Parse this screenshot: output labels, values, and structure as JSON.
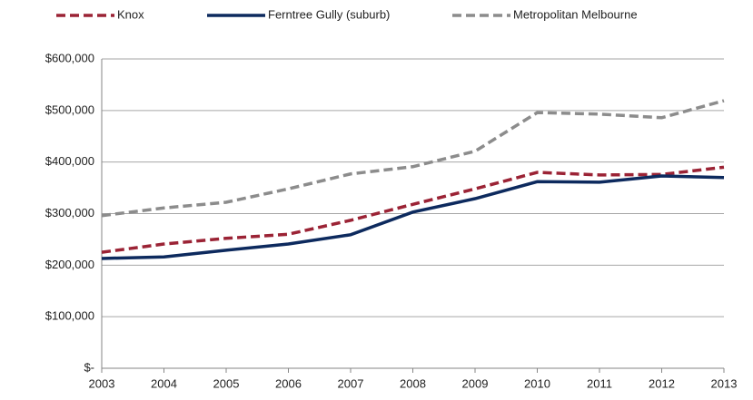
{
  "chart_data": {
    "type": "line",
    "categories": [
      "2003",
      "2004",
      "2005",
      "2006",
      "2007",
      "2008",
      "2009",
      "2010",
      "2011",
      "2012",
      "2013"
    ],
    "series": [
      {
        "name": "Knox",
        "color": "#9b2335",
        "dashed": true,
        "values": [
          225000,
          241000,
          252000,
          260000,
          287000,
          318000,
          348000,
          380000,
          375000,
          376000,
          390000
        ]
      },
      {
        "name": "Ferntree Gully (suburb)",
        "color": "#0d2a5e",
        "dashed": false,
        "values": [
          213000,
          216000,
          229000,
          241000,
          259000,
          303000,
          329000,
          362000,
          361000,
          373000,
          370000
        ]
      },
      {
        "name": "Metropolitan Melbourne",
        "color": "#8c8c8c",
        "dashed": true,
        "values": [
          296000,
          311000,
          322000,
          348000,
          377000,
          391000,
          421000,
          496000,
          493000,
          486000,
          519000
        ]
      }
    ],
    "ylim": [
      0,
      600000
    ],
    "yticks": [
      {
        "value": 0,
        "label": "$-"
      },
      {
        "value": 100000,
        "label": "$100,000"
      },
      {
        "value": 200000,
        "label": "$200,000"
      },
      {
        "value": 300000,
        "label": "$300,000"
      },
      {
        "value": 400000,
        "label": "$400,000"
      },
      {
        "value": 500000,
        "label": "$500,000"
      },
      {
        "value": 600000,
        "label": "$600,000"
      }
    ],
    "grid": true,
    "legend": "top"
  }
}
